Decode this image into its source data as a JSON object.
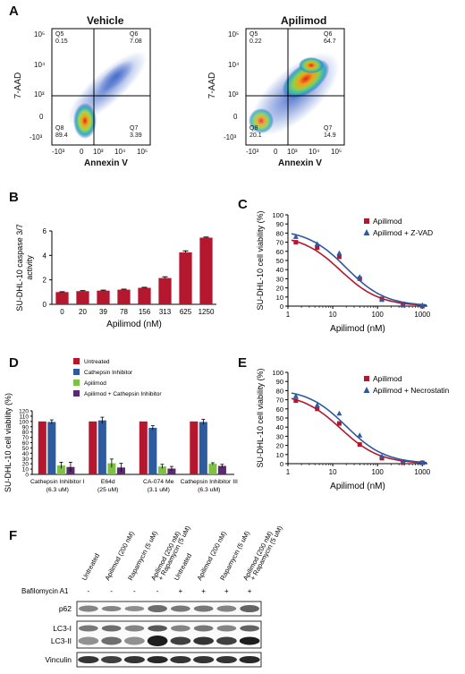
{
  "figure": {
    "panel_labels": {
      "A": "A",
      "B": "B",
      "C": "C",
      "D": "D",
      "E": "E",
      "F": "F"
    }
  },
  "panelA": {
    "vehicle": {
      "title": "Vehicle",
      "xlabel": "Annexin V",
      "ylabel": "7-AAD",
      "x_ticks": [
        "-10³",
        "0",
        "10³",
        "10⁴",
        "10⁵"
      ],
      "y_ticks": [
        "10⁵",
        "10⁴",
        "10³",
        "0",
        "-10³"
      ],
      "quadrants": [
        {
          "name": "Q5",
          "value": "0.15"
        },
        {
          "name": "Q6",
          "value": "7.08"
        },
        {
          "name": "Q7",
          "value": "3.39"
        },
        {
          "name": "Q8",
          "value": "89.4"
        }
      ]
    },
    "apilimod": {
      "title": "Apilimod",
      "xlabel": "Annexin V",
      "ylabel": "7-AAD",
      "x_ticks": [
        "-10³",
        "0",
        "10³",
        "10⁴",
        "10⁵"
      ],
      "y_ticks": [
        "10⁵",
        "10⁴",
        "10³",
        "0",
        "-10³"
      ],
      "quadrants": [
        {
          "name": "Q5",
          "value": "0.22"
        },
        {
          "name": "Q6",
          "value": "64.7"
        },
        {
          "name": "Q7",
          "value": "14.9"
        },
        {
          "name": "Q8",
          "value": "20.1"
        }
      ]
    }
  },
  "chart_data": [
    {
      "panel": "B",
      "type": "bar",
      "ylabel": "SU-DHL-10 caspase 3/7 activity",
      "xlabel": "Apilimod (nM)",
      "categories": [
        "0",
        "20",
        "39",
        "78",
        "156",
        "313",
        "625",
        "1250"
      ],
      "values": [
        1.0,
        1.08,
        1.12,
        1.2,
        1.35,
        2.15,
        4.25,
        5.45
      ],
      "errors": [
        0.03,
        0.04,
        0.04,
        0.04,
        0.04,
        0.1,
        0.12,
        0.05
      ],
      "ylim": [
        0,
        6
      ],
      "y_ticks": [
        0,
        2,
        4,
        6
      ],
      "color": "#b5172e"
    },
    {
      "panel": "C",
      "type": "scatter",
      "ylabel": "SU-DHL-10 cell viability (%)",
      "xlabel": "Apilimod (nM)",
      "xscale": "log",
      "x_ticks": [
        1,
        10,
        100,
        1000
      ],
      "y_ticks": [
        0,
        10,
        20,
        30,
        40,
        50,
        60,
        70,
        80,
        90,
        100
      ],
      "ylim": [
        0,
        100
      ],
      "series": [
        {
          "name": "Apilimod",
          "marker": "square",
          "color": "#b5172e",
          "x": [
            1.5,
            4.5,
            14,
            40,
            125,
            370,
            1000
          ],
          "y": [
            70,
            64,
            54,
            30,
            8,
            1,
            0
          ]
        },
        {
          "name": "Apilimod + Z-VAD",
          "marker": "triangle",
          "color": "#2e5a9e",
          "x": [
            1.5,
            4.5,
            14,
            40,
            125,
            370,
            1000
          ],
          "y": [
            76,
            68,
            58,
            32,
            7,
            1,
            1
          ]
        }
      ]
    },
    {
      "panel": "D",
      "type": "bar",
      "ylabel": "SU-DHL-10 cell viability (%)",
      "ylim": [
        0,
        120
      ],
      "y_ticks": [
        0,
        10,
        20,
        30,
        40,
        50,
        60,
        70,
        80,
        90,
        100,
        110,
        120
      ],
      "groups": [
        "Cathepsin Inhibitor I\n(6.3 uM)",
        "E64d\n(25 uM)",
        "CA-074 Me\n(3.1 uM)",
        "Cathepsin Inhibitor III\n(6.3 uM)"
      ],
      "series": [
        {
          "name": "Untreated",
          "color": "#b5172e",
          "values": [
            100,
            100,
            100,
            100
          ],
          "errors": [
            0,
            0,
            0,
            0
          ]
        },
        {
          "name": "Cathepsin Inhibitor",
          "color": "#2e5a9e",
          "values": [
            99,
            102,
            88,
            99
          ],
          "errors": [
            4,
            6,
            4,
            5
          ]
        },
        {
          "name": "Apilimod",
          "color": "#7dc243",
          "values": [
            17,
            21,
            15,
            20
          ],
          "errors": [
            6,
            8,
            4,
            2
          ]
        },
        {
          "name": "Apilimod + Cathepsin Inhibitor",
          "color": "#5b2a6e",
          "values": [
            14,
            13,
            11,
            16
          ],
          "errors": [
            9,
            8,
            4,
            3
          ]
        }
      ]
    },
    {
      "panel": "E",
      "type": "scatter",
      "ylabel": "SU-DHL-10 cell viability (%)",
      "xlabel": "Apilimod (nM)",
      "xscale": "log",
      "x_ticks": [
        1,
        10,
        100,
        1000
      ],
      "y_ticks": [
        0,
        10,
        20,
        30,
        40,
        50,
        60,
        70,
        80,
        90,
        100
      ],
      "ylim": [
        0,
        100
      ],
      "series": [
        {
          "name": "Apilimod",
          "marker": "square",
          "color": "#b5172e",
          "x": [
            1.5,
            4.5,
            14,
            40,
            125,
            370,
            1000
          ],
          "y": [
            69,
            60,
            44,
            21,
            6,
            1,
            1
          ]
        },
        {
          "name": "Apilimod + Necrostatin",
          "marker": "triangle",
          "color": "#2e5a9e",
          "x": [
            1.5,
            4.5,
            14,
            40,
            125,
            370,
            1000
          ],
          "y": [
            74,
            64,
            55,
            31,
            8,
            2,
            1
          ]
        }
      ]
    }
  ],
  "panelF": {
    "lanes": [
      "Untreated",
      "Apilimod (200 nM)",
      "Rapamycin (5 uM)",
      "Apilimod (200 nM)\n+ Rapamycin (5 uM)",
      "Untreated",
      "Apilimod (200 nM)",
      "Rapamycin (5 uM)",
      "Apilimod (200 nM)\n+ Rapamycin (5 uM)"
    ],
    "bafilomycin_label": "Bafilomycin A1",
    "bafilomycin": [
      "-",
      "-",
      "-",
      "-",
      "+",
      "+",
      "+",
      "+"
    ],
    "blots": [
      "p62",
      "LC3-I",
      "LC3-II",
      "Vinculin"
    ]
  }
}
